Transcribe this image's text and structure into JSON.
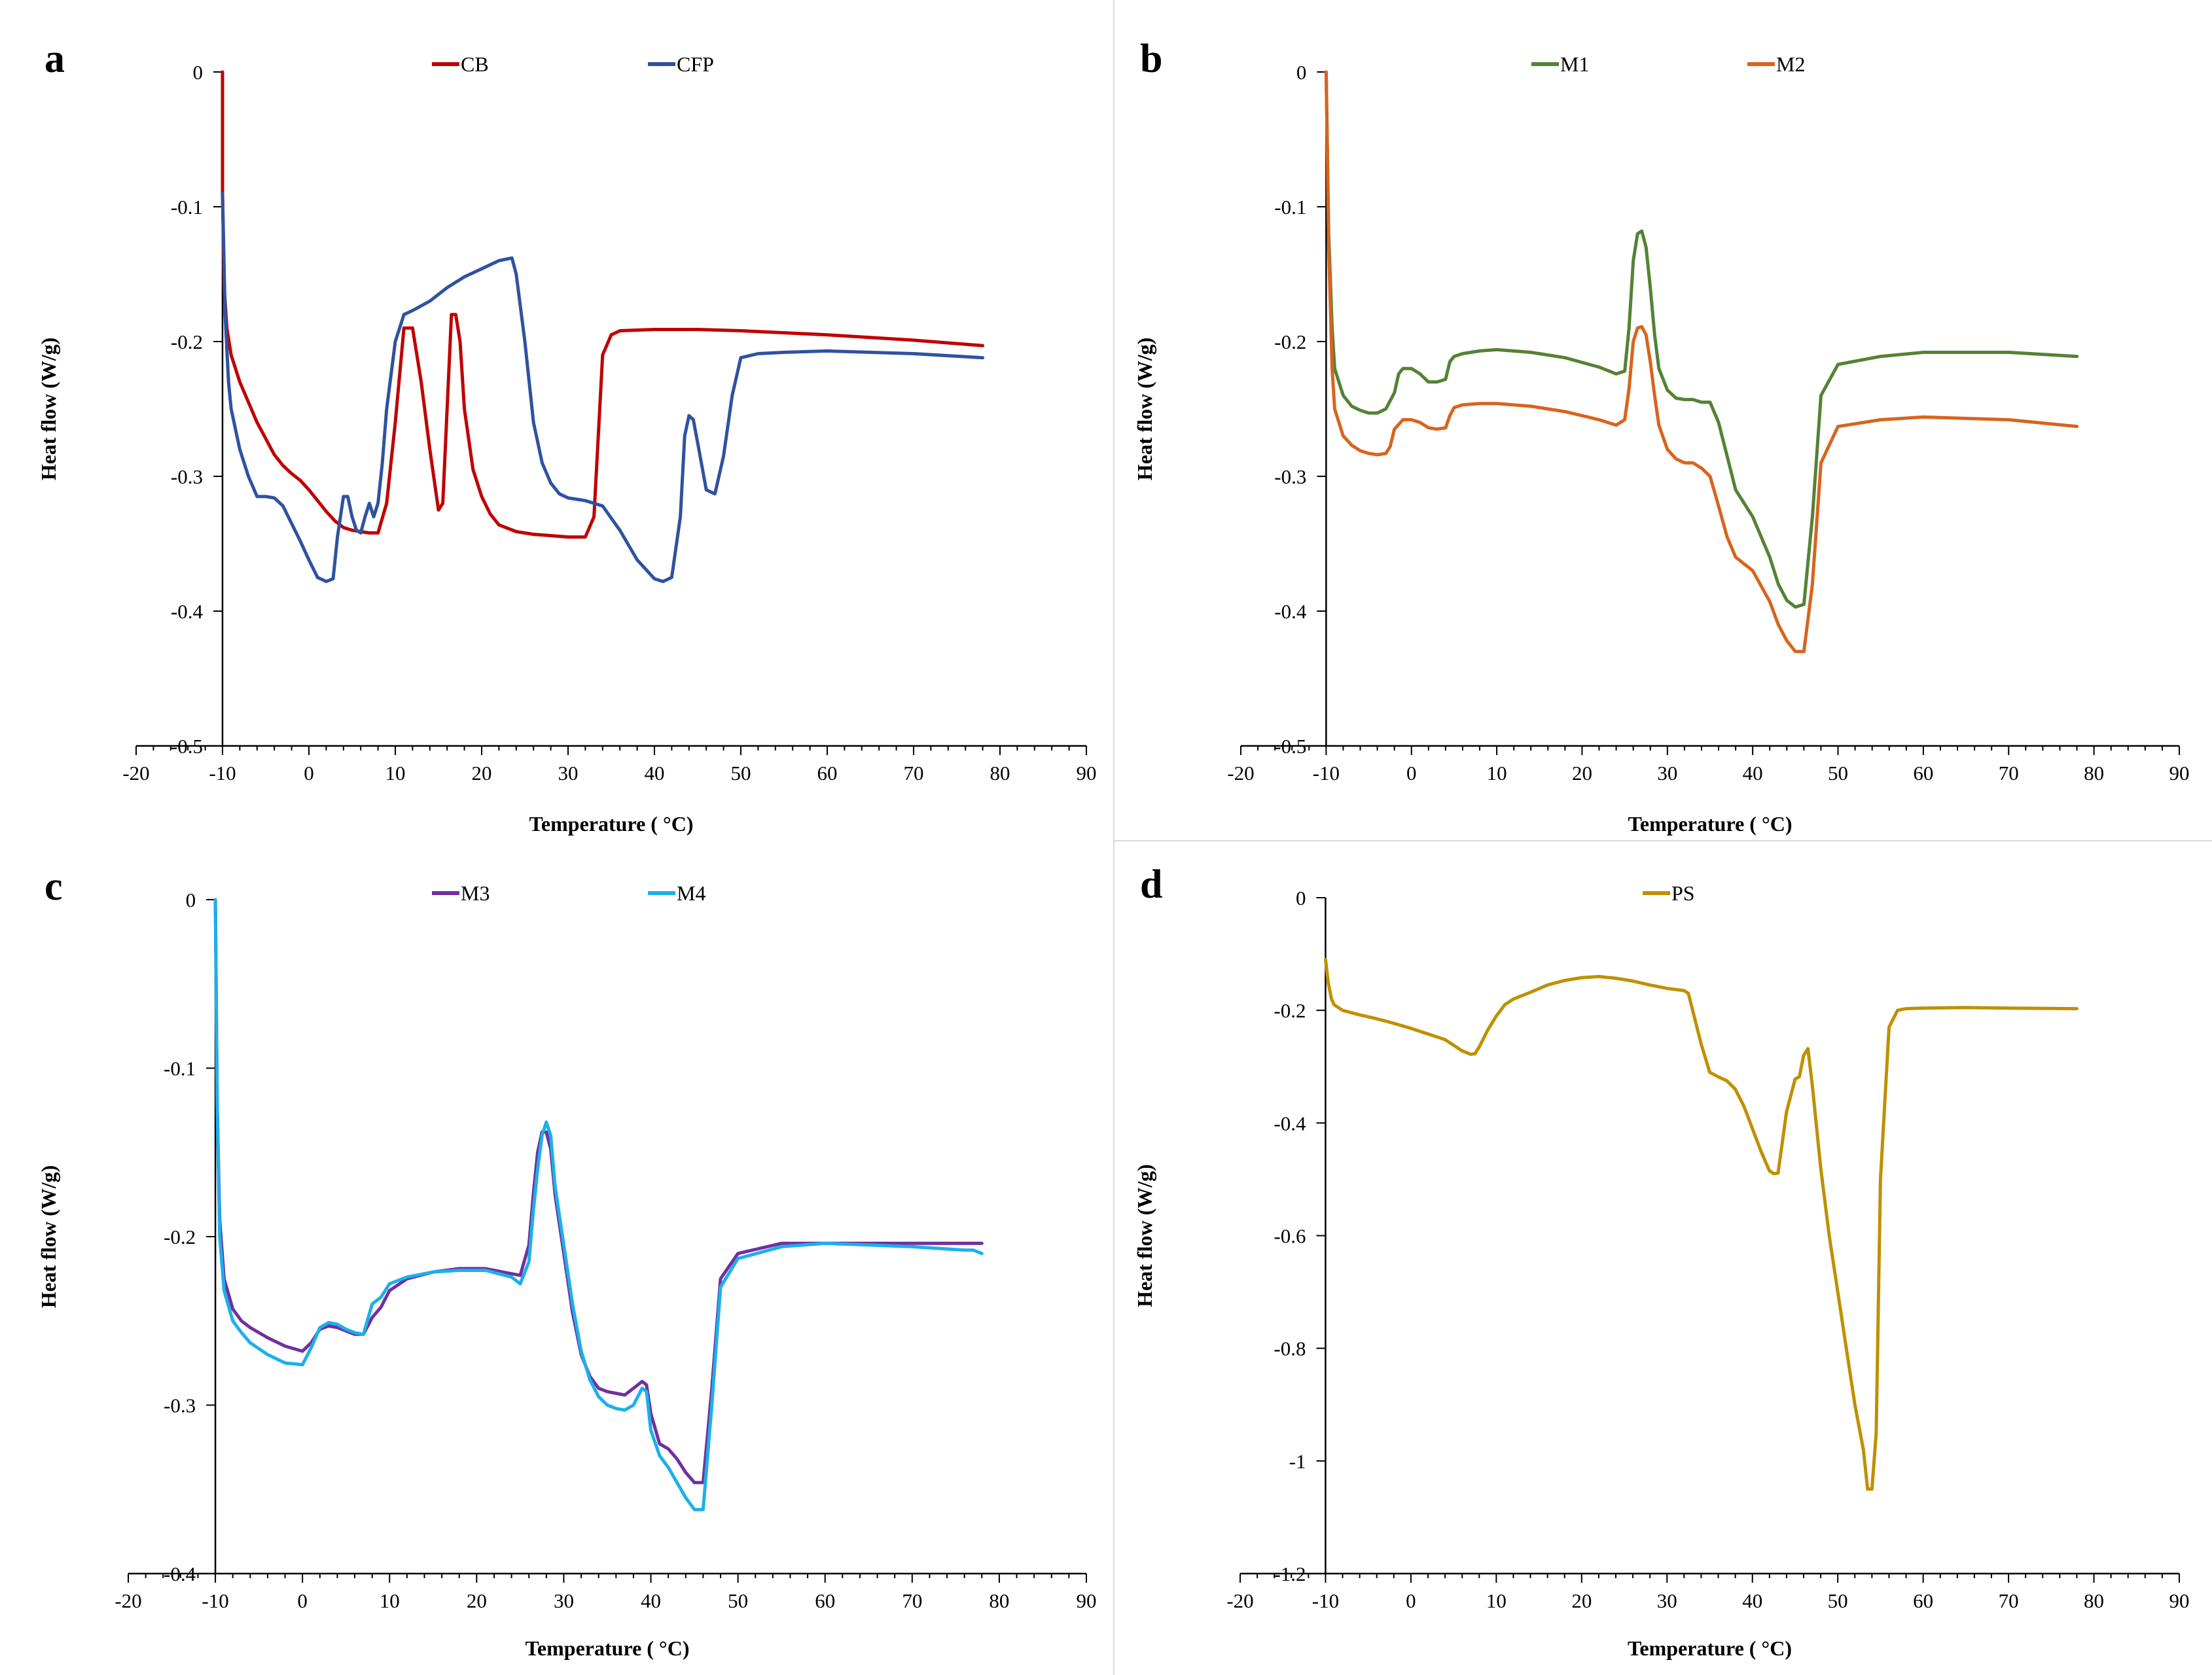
{
  "chart_data": [
    {
      "type": "line",
      "panel_label": "a",
      "xlabel": "Temperature ( °C)",
      "ylabel": "Heat flow (W/g)",
      "xlim": [
        -20,
        90
      ],
      "ylim": [
        -0.5,
        0
      ],
      "xticks": [
        -20,
        -10,
        0,
        10,
        20,
        30,
        40,
        50,
        60,
        70,
        80,
        90
      ],
      "yticks": [
        0,
        -0.1,
        -0.2,
        -0.3,
        -0.4,
        -0.5
      ],
      "xtick_labels": [
        "-20",
        "-10",
        "0",
        "10",
        "20",
        "30",
        "40",
        "50",
        "60",
        "70",
        "80",
        "90"
      ],
      "ytick_labels": [
        "0",
        "-0.1",
        "-0.2",
        "-0.3",
        "-0.4",
        "-0.5"
      ],
      "legend": "top-center",
      "series": [
        {
          "name": "CB",
          "color": "#c00000",
          "x": [
            -10,
            -10,
            -9.8,
            -9.5,
            -9,
            -8,
            -7,
            -6,
            -5,
            -4,
            -3,
            -2,
            -1,
            0,
            1,
            2,
            3,
            4,
            5,
            6,
            7,
            8,
            9,
            10,
            11,
            12,
            13,
            14,
            15,
            15.5,
            16,
            16.5,
            17,
            17.5,
            18,
            19,
            20,
            21,
            22,
            24,
            26,
            28,
            30,
            32,
            33,
            33.5,
            34,
            35,
            36,
            40,
            45,
            50,
            60,
            70,
            78
          ],
          "y": [
            0,
            -0.09,
            -0.16,
            -0.19,
            -0.21,
            -0.23,
            -0.245,
            -0.26,
            -0.272,
            -0.284,
            -0.292,
            -0.298,
            -0.303,
            -0.31,
            -0.318,
            -0.326,
            -0.333,
            -0.338,
            -0.34,
            -0.341,
            -0.342,
            -0.342,
            -0.32,
            -0.26,
            -0.19,
            -0.19,
            -0.23,
            -0.28,
            -0.325,
            -0.32,
            -0.25,
            -0.18,
            -0.18,
            -0.2,
            -0.25,
            -0.295,
            -0.315,
            -0.328,
            -0.336,
            -0.341,
            -0.343,
            -0.344,
            -0.345,
            -0.345,
            -0.33,
            -0.27,
            -0.21,
            -0.195,
            -0.192,
            -0.191,
            -0.191,
            -0.192,
            -0.195,
            -0.199,
            -0.203
          ]
        },
        {
          "name": "CFP",
          "color": "#2f52a0",
          "x": [
            -10,
            -9.7,
            -9.3,
            -9,
            -8,
            -7,
            -6,
            -5,
            -4,
            -3,
            -2,
            -1,
            0,
            1,
            2,
            2.8,
            3.3,
            4,
            4.5,
            5,
            5.5,
            6,
            6.5,
            7,
            7.5,
            8,
            8.5,
            9,
            10,
            11,
            12,
            14,
            16,
            18,
            20,
            22,
            23.5,
            24,
            25,
            26,
            27,
            28,
            29,
            30,
            32,
            34,
            36,
            38,
            40,
            41,
            42,
            43,
            43.5,
            44,
            44.5,
            45,
            46,
            47,
            48,
            49,
            50,
            52,
            55,
            60,
            70,
            78
          ],
          "y": [
            -0.09,
            -0.18,
            -0.23,
            -0.25,
            -0.28,
            -0.3,
            -0.315,
            -0.315,
            -0.316,
            -0.322,
            -0.335,
            -0.348,
            -0.362,
            -0.375,
            -0.378,
            -0.376,
            -0.345,
            -0.315,
            -0.315,
            -0.33,
            -0.34,
            -0.342,
            -0.33,
            -0.32,
            -0.33,
            -0.32,
            -0.29,
            -0.25,
            -0.2,
            -0.18,
            -0.177,
            -0.17,
            -0.16,
            -0.152,
            -0.146,
            -0.14,
            -0.138,
            -0.15,
            -0.2,
            -0.26,
            -0.29,
            -0.305,
            -0.313,
            -0.316,
            -0.318,
            -0.322,
            -0.34,
            -0.362,
            -0.376,
            -0.378,
            -0.375,
            -0.33,
            -0.27,
            -0.255,
            -0.258,
            -0.275,
            -0.31,
            -0.313,
            -0.285,
            -0.24,
            -0.212,
            -0.209,
            -0.208,
            -0.207,
            -0.209,
            -0.212
          ]
        }
      ]
    },
    {
      "type": "line",
      "panel_label": "b",
      "xlabel": "Temperature ( °C)",
      "ylabel": "Heat flow (W/g)",
      "xlim": [
        -20,
        90
      ],
      "ylim": [
        -0.5,
        0
      ],
      "xticks": [
        -20,
        -10,
        0,
        10,
        20,
        30,
        40,
        50,
        60,
        70,
        80,
        90
      ],
      "yticks": [
        0,
        -0.1,
        -0.2,
        -0.3,
        -0.4,
        -0.5
      ],
      "xtick_labels": [
        "-20",
        "-10",
        "0",
        "10",
        "20",
        "30",
        "40",
        "50",
        "60",
        "70",
        "80",
        "90"
      ],
      "ytick_labels": [
        "0",
        "-0.1",
        "-0.2",
        "-0.3",
        "-0.4",
        "-0.5"
      ],
      "legend": "top-center",
      "series": [
        {
          "name": "M1",
          "color": "#548235",
          "x": [
            -10,
            -9.7,
            -9.3,
            -9,
            -8,
            -7,
            -6,
            -5,
            -4,
            -3,
            -2,
            -1.5,
            -1,
            0,
            1,
            2,
            3,
            4,
            4.5,
            5,
            6,
            8,
            10,
            14,
            18,
            22,
            24,
            25,
            25.5,
            26,
            26.5,
            27,
            27.5,
            28,
            28.5,
            29,
            30,
            31,
            32,
            33,
            34,
            35,
            36,
            37,
            38,
            40,
            42,
            43,
            44,
            45,
            46,
            47,
            48,
            50,
            55,
            60,
            70,
            78
          ],
          "y": [
            0,
            -0.12,
            -0.19,
            -0.22,
            -0.24,
            -0.248,
            -0.251,
            -0.253,
            -0.253,
            -0.25,
            -0.238,
            -0.224,
            -0.22,
            -0.22,
            -0.224,
            -0.23,
            -0.23,
            -0.228,
            -0.215,
            -0.211,
            -0.209,
            -0.207,
            -0.206,
            -0.208,
            -0.212,
            -0.219,
            -0.224,
            -0.222,
            -0.19,
            -0.14,
            -0.12,
            -0.118,
            -0.13,
            -0.16,
            -0.195,
            -0.22,
            -0.236,
            -0.242,
            -0.243,
            -0.243,
            -0.245,
            -0.245,
            -0.26,
            -0.285,
            -0.31,
            -0.33,
            -0.36,
            -0.38,
            -0.392,
            -0.397,
            -0.395,
            -0.33,
            -0.24,
            -0.217,
            -0.211,
            -0.208,
            -0.208,
            -0.211
          ]
        },
        {
          "name": "M2",
          "color": "#d8641e",
          "x": [
            -10,
            -9.7,
            -9.3,
            -9,
            -8,
            -7,
            -6,
            -5,
            -4,
            -3,
            -2.5,
            -2,
            -1,
            0,
            1,
            2,
            3,
            4,
            4.5,
            5,
            6,
            8,
            10,
            14,
            18,
            22,
            24,
            25,
            25.5,
            26,
            26.5,
            27,
            27.5,
            28,
            28.5,
            29,
            30,
            31,
            32,
            33,
            34,
            35,
            36,
            37,
            38,
            40,
            42,
            43,
            44,
            45,
            46,
            47,
            48,
            50,
            55,
            60,
            70,
            78
          ],
          "y": [
            0,
            -0.13,
            -0.22,
            -0.25,
            -0.27,
            -0.277,
            -0.281,
            -0.283,
            -0.284,
            -0.283,
            -0.278,
            -0.265,
            -0.258,
            -0.258,
            -0.26,
            -0.264,
            -0.265,
            -0.264,
            -0.255,
            -0.249,
            -0.247,
            -0.246,
            -0.246,
            -0.248,
            -0.252,
            -0.258,
            -0.262,
            -0.258,
            -0.235,
            -0.2,
            -0.19,
            -0.189,
            -0.195,
            -0.215,
            -0.24,
            -0.262,
            -0.28,
            -0.287,
            -0.29,
            -0.29,
            -0.294,
            -0.3,
            -0.322,
            -0.345,
            -0.36,
            -0.37,
            -0.393,
            -0.41,
            -0.422,
            -0.43,
            -0.43,
            -0.38,
            -0.29,
            -0.263,
            -0.258,
            -0.256,
            -0.258,
            -0.263
          ]
        }
      ]
    },
    {
      "type": "line",
      "panel_label": "c",
      "xlabel": "Temperature ( °C)",
      "ylabel": "Heat flow (W/g)",
      "xlim": [
        -20,
        90
      ],
      "ylim": [
        -0.4,
        0
      ],
      "xticks": [
        -20,
        -10,
        0,
        10,
        20,
        30,
        40,
        50,
        60,
        70,
        80,
        90
      ],
      "yticks": [
        0,
        -0.1,
        -0.2,
        -0.3,
        -0.4
      ],
      "xtick_labels": [
        "-20",
        "-10",
        "0",
        "10",
        "20",
        "30",
        "40",
        "50",
        "60",
        "70",
        "80",
        "90"
      ],
      "ytick_labels": [
        "0",
        "-0.1",
        "-0.2",
        "-0.3",
        "-0.4"
      ],
      "legend": "top-center",
      "series": [
        {
          "name": "M3",
          "color": "#7030a0",
          "x": [
            -10,
            -9.8,
            -9.5,
            -9,
            -8,
            -7,
            -6,
            -4,
            -2,
            0,
            1,
            2,
            3,
            4,
            5,
            6,
            7,
            8,
            9,
            10,
            12,
            15,
            18,
            21,
            24,
            25,
            26,
            26.5,
            27,
            27.5,
            28,
            28.5,
            29,
            30,
            31,
            32,
            33,
            34,
            35,
            36,
            37,
            38,
            39,
            39.5,
            40,
            41,
            42,
            43,
            44,
            45,
            46,
            47,
            48,
            50,
            55,
            60,
            70,
            78
          ],
          "y": [
            0,
            -0.12,
            -0.19,
            -0.225,
            -0.243,
            -0.25,
            -0.254,
            -0.26,
            -0.265,
            -0.268,
            -0.263,
            -0.255,
            -0.253,
            -0.254,
            -0.256,
            -0.258,
            -0.258,
            -0.248,
            -0.242,
            -0.232,
            -0.225,
            -0.221,
            -0.219,
            -0.219,
            -0.222,
            -0.223,
            -0.205,
            -0.175,
            -0.15,
            -0.138,
            -0.138,
            -0.148,
            -0.175,
            -0.21,
            -0.245,
            -0.27,
            -0.283,
            -0.29,
            -0.292,
            -0.293,
            -0.294,
            -0.29,
            -0.286,
            -0.288,
            -0.305,
            -0.323,
            -0.326,
            -0.332,
            -0.34,
            -0.346,
            -0.346,
            -0.29,
            -0.225,
            -0.21,
            -0.204,
            -0.204,
            -0.204,
            -0.204
          ]
        },
        {
          "name": "M4",
          "color": "#1cb0ea",
          "x": [
            -10,
            -9.8,
            -9.5,
            -9,
            -8,
            -7,
            -6,
            -4,
            -2,
            0,
            1,
            2,
            3,
            4,
            5,
            6,
            7,
            8,
            9,
            10,
            12,
            15,
            18,
            21,
            24,
            25,
            26,
            26.5,
            27,
            27.5,
            28,
            28.5,
            29,
            30,
            31,
            32,
            33,
            34,
            35,
            36,
            37,
            38,
            39,
            39.5,
            40,
            41,
            42,
            43,
            44,
            45,
            46,
            47,
            48,
            50,
            55,
            60,
            70,
            76,
            77,
            78
          ],
          "y": [
            0,
            -0.12,
            -0.2,
            -0.232,
            -0.25,
            -0.257,
            -0.263,
            -0.27,
            -0.275,
            -0.276,
            -0.266,
            -0.254,
            -0.251,
            -0.252,
            -0.255,
            -0.257,
            -0.258,
            -0.24,
            -0.236,
            -0.228,
            -0.224,
            -0.221,
            -0.22,
            -0.22,
            -0.224,
            -0.228,
            -0.215,
            -0.185,
            -0.16,
            -0.14,
            -0.132,
            -0.14,
            -0.17,
            -0.205,
            -0.24,
            -0.268,
            -0.285,
            -0.295,
            -0.3,
            -0.302,
            -0.303,
            -0.3,
            -0.29,
            -0.292,
            -0.315,
            -0.33,
            -0.337,
            -0.346,
            -0.355,
            -0.362,
            -0.362,
            -0.3,
            -0.23,
            -0.213,
            -0.206,
            -0.204,
            -0.206,
            -0.208,
            -0.208,
            -0.21
          ]
        }
      ]
    },
    {
      "type": "line",
      "panel_label": "d",
      "xlabel": "Temperature ( °C)",
      "ylabel": "Heat flow (W/g)",
      "xlim": [
        -20,
        90
      ],
      "ylim": [
        -1.2,
        0
      ],
      "xticks": [
        -20,
        -10,
        0,
        10,
        20,
        30,
        40,
        50,
        60,
        70,
        80,
        90
      ],
      "yticks": [
        0,
        -0.2,
        -0.4,
        -0.6,
        -0.8,
        -1,
        -1.2
      ],
      "xtick_labels": [
        "-20",
        "-10",
        "0",
        "10",
        "20",
        "30",
        "40",
        "50",
        "60",
        "70",
        "80",
        "90"
      ],
      "ytick_labels": [
        "0",
        "-0.2",
        "-0.4",
        "-0.6",
        "-0.8",
        "-1",
        "-1.2"
      ],
      "legend": "top-center",
      "series": [
        {
          "name": "PS",
          "color": "#bf9000",
          "x": [
            -10,
            -9.7,
            -9.3,
            -9,
            -8,
            -6,
            -4,
            -2,
            0,
            2,
            4,
            5,
            6,
            7,
            7.5,
            8,
            9,
            10,
            11,
            12,
            14,
            16,
            18,
            20,
            22,
            24,
            26,
            28,
            30,
            31,
            32,
            32.5,
            33,
            34,
            35,
            36,
            37,
            38,
            39,
            40,
            41,
            42,
            42.5,
            43,
            44,
            45,
            45.5,
            46,
            46.5,
            47,
            48,
            49,
            50,
            51,
            52,
            53,
            53.5,
            54,
            54.5,
            55,
            56,
            57,
            58,
            60,
            65,
            70,
            78
          ],
          "y": [
            -0.11,
            -0.15,
            -0.18,
            -0.19,
            -0.2,
            -0.208,
            -0.215,
            -0.223,
            -0.232,
            -0.242,
            -0.252,
            -0.262,
            -0.272,
            -0.278,
            -0.277,
            -0.265,
            -0.235,
            -0.21,
            -0.19,
            -0.18,
            -0.168,
            -0.155,
            -0.147,
            -0.142,
            -0.14,
            -0.143,
            -0.148,
            -0.155,
            -0.161,
            -0.163,
            -0.165,
            -0.17,
            -0.2,
            -0.26,
            -0.31,
            -0.318,
            -0.325,
            -0.34,
            -0.37,
            -0.41,
            -0.45,
            -0.485,
            -0.49,
            -0.489,
            -0.38,
            -0.322,
            -0.318,
            -0.28,
            -0.268,
            -0.33,
            -0.48,
            -0.6,
            -0.7,
            -0.8,
            -0.9,
            -0.98,
            -1.05,
            -1.05,
            -0.95,
            -0.5,
            -0.23,
            -0.2,
            -0.197,
            -0.196,
            -0.195,
            -0.196,
            -0.197
          ]
        }
      ]
    }
  ]
}
